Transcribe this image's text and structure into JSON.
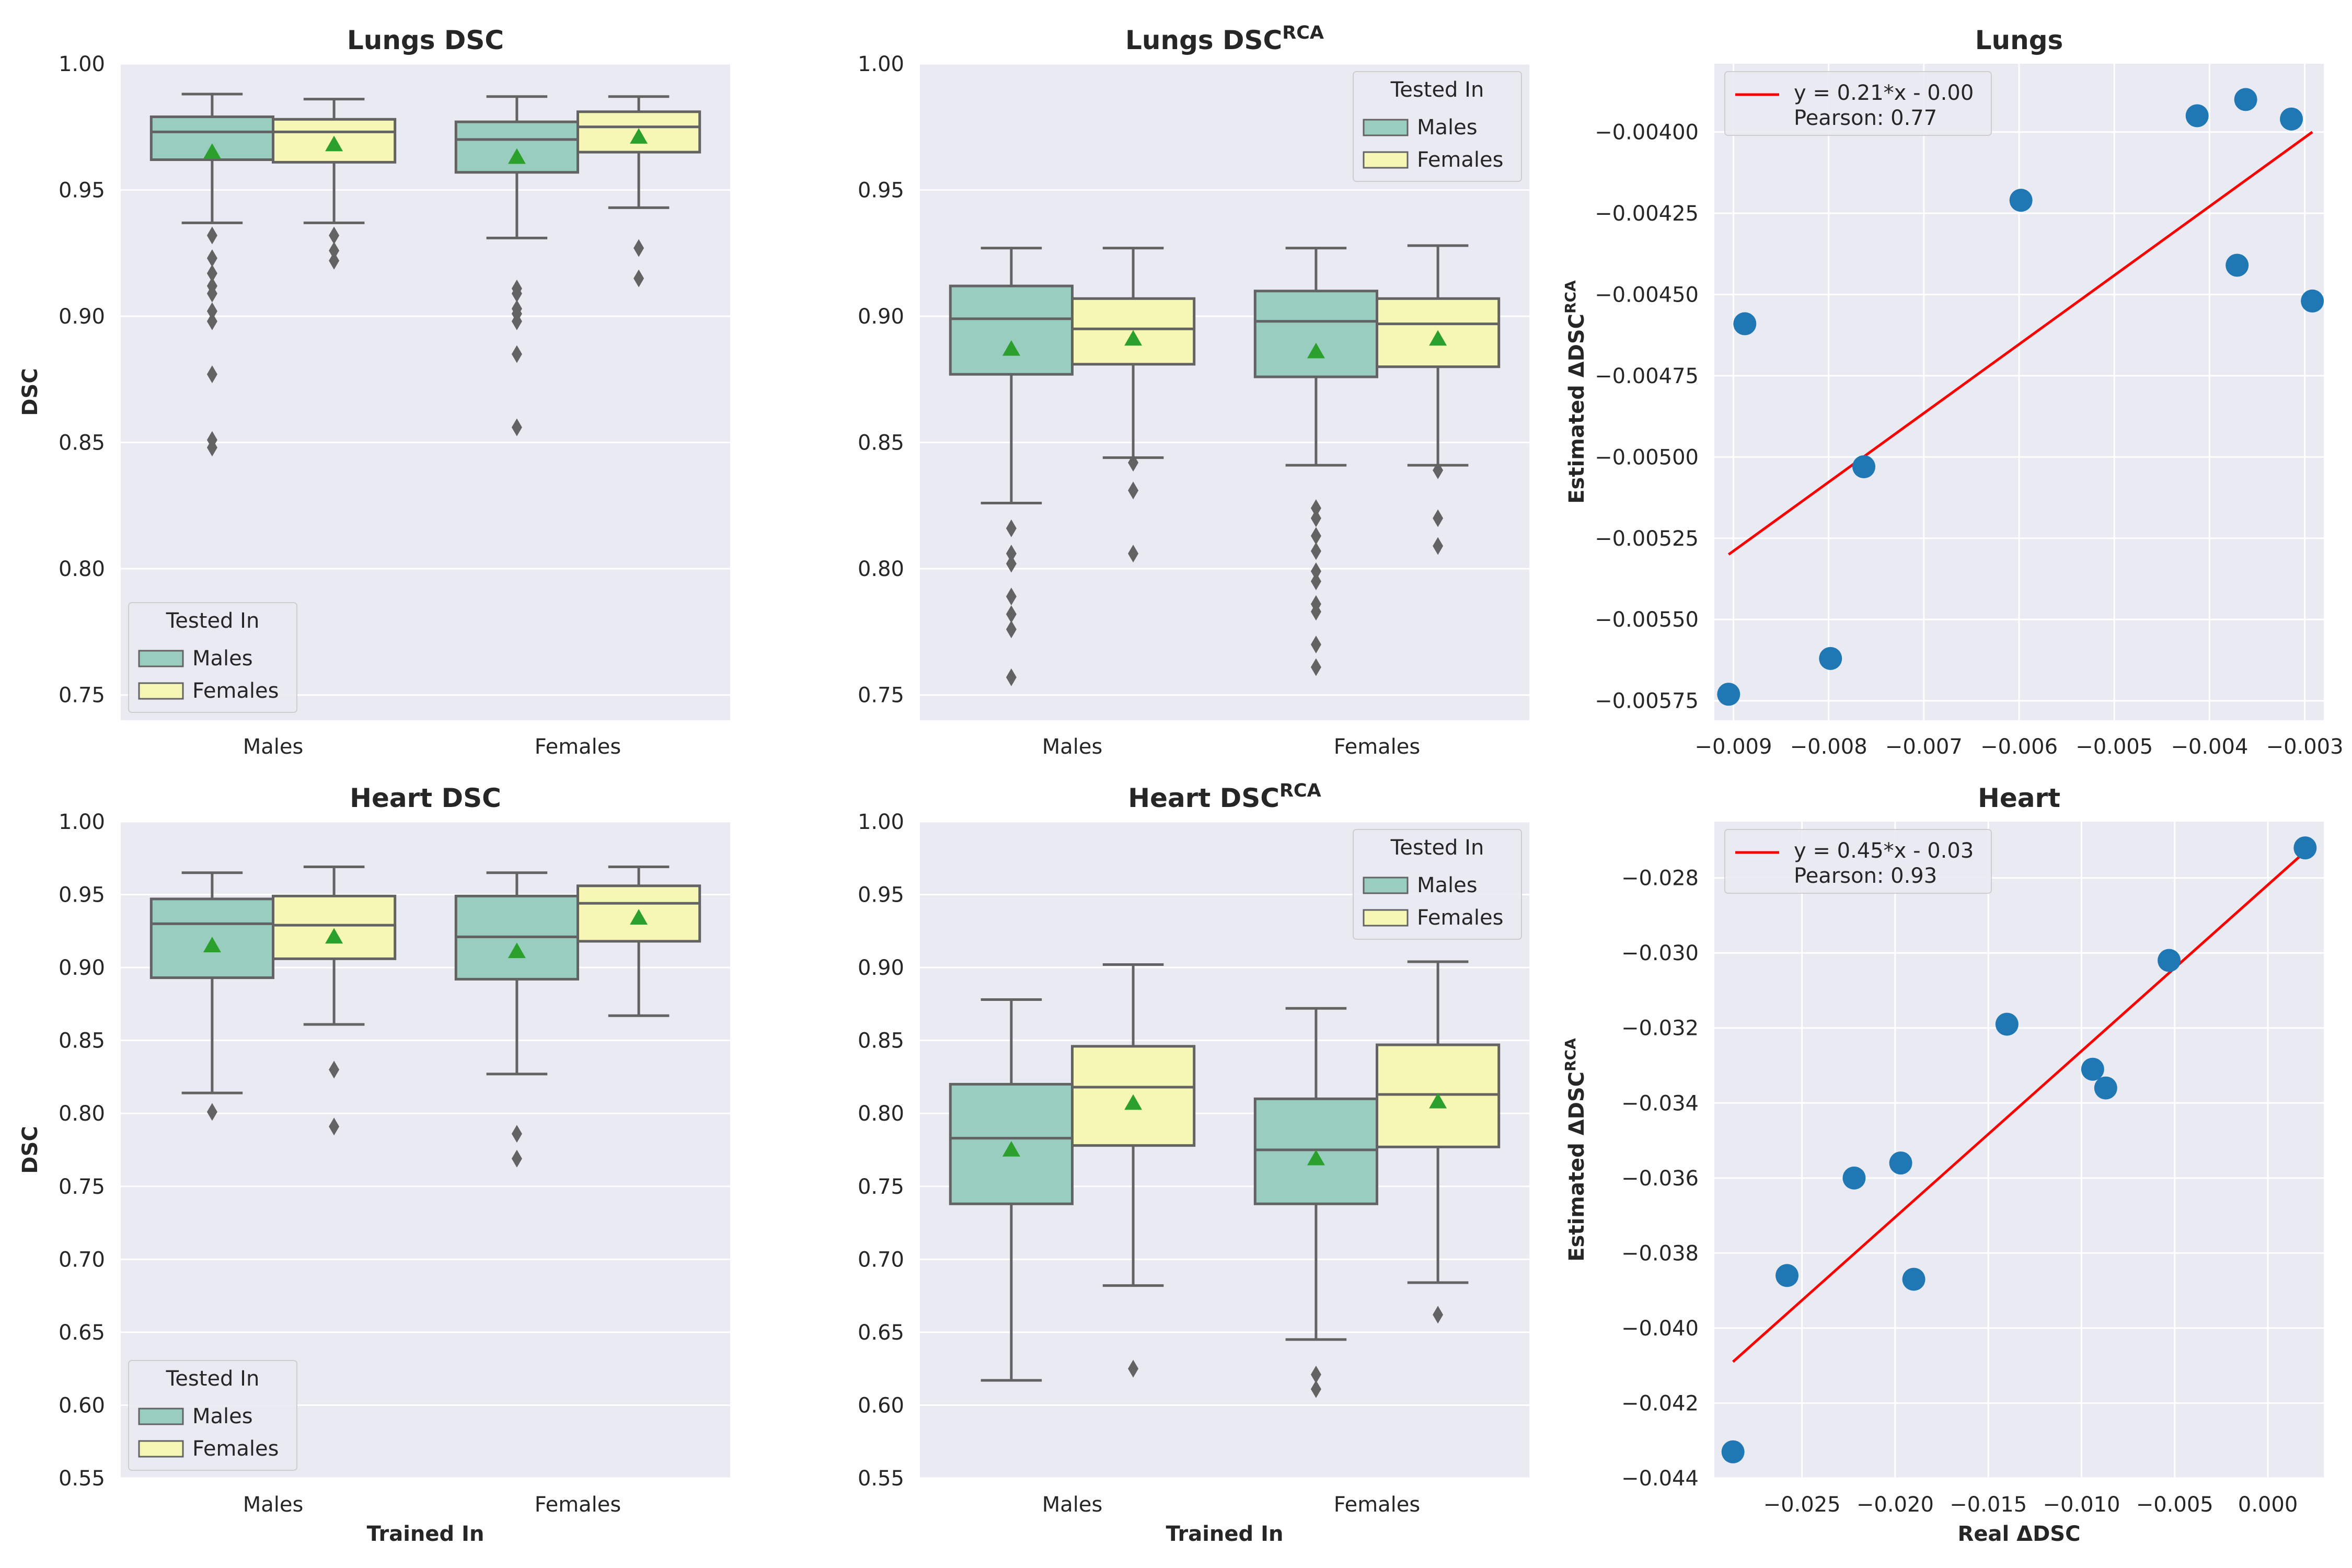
{
  "colors": {
    "males": "#99cdbf",
    "females": "#f7f7b5",
    "box_edge": "#636363",
    "mean_marker": "#2ca02c",
    "scatter_point": "#1f77b4",
    "fit_line": "#ff0000",
    "panel_bg": "#eaeaf2",
    "grid": "#ffffff"
  },
  "chart_data": [
    {
      "type": "box",
      "title": "Lungs DSC",
      "title_sup": "",
      "xlabel": "",
      "ylabel": "DSC",
      "ylim": [
        0.74,
        1.0
      ],
      "yticks": [
        0.75,
        0.8,
        0.85,
        0.9,
        0.95,
        1.0
      ],
      "ytick_labels": [
        "0.75",
        "0.80",
        "0.85",
        "0.90",
        "0.95",
        "1.00"
      ],
      "categories": [
        "Males",
        "Females"
      ],
      "legend": {
        "title": "Tested In",
        "entries": [
          "Males",
          "Females"
        ],
        "loc": "lower-left"
      },
      "groups": [
        {
          "trained_in": "Males",
          "tested_in": "Males",
          "whisker_low": 0.937,
          "q1": 0.962,
          "median": 0.973,
          "q3": 0.979,
          "whisker_high": 0.988,
          "mean": 0.965,
          "outliers": [
            0.932,
            0.923,
            0.917,
            0.912,
            0.909,
            0.902,
            0.898,
            0.877,
            0.851,
            0.848
          ]
        },
        {
          "trained_in": "Males",
          "tested_in": "Females",
          "whisker_low": 0.937,
          "q1": 0.961,
          "median": 0.973,
          "q3": 0.978,
          "whisker_high": 0.986,
          "mean": 0.968,
          "outliers": [
            0.932,
            0.926,
            0.922
          ]
        },
        {
          "trained_in": "Females",
          "tested_in": "Males",
          "whisker_low": 0.931,
          "q1": 0.957,
          "median": 0.97,
          "q3": 0.977,
          "whisker_high": 0.987,
          "mean": 0.963,
          "outliers": [
            0.911,
            0.909,
            0.903,
            0.901,
            0.898,
            0.885,
            0.856
          ]
        },
        {
          "trained_in": "Females",
          "tested_in": "Females",
          "whisker_low": 0.943,
          "q1": 0.965,
          "median": 0.975,
          "q3": 0.981,
          "whisker_high": 0.987,
          "mean": 0.971,
          "outliers": [
            0.927,
            0.915
          ]
        }
      ]
    },
    {
      "type": "box",
      "title": "Lungs DSC",
      "title_sup": "RCA",
      "xlabel": "",
      "ylabel": "",
      "ylim": [
        0.74,
        1.0
      ],
      "yticks": [
        0.75,
        0.8,
        0.85,
        0.9,
        0.95,
        1.0
      ],
      "ytick_labels": [
        "0.75",
        "0.80",
        "0.85",
        "0.90",
        "0.95",
        "1.00"
      ],
      "categories": [
        "Males",
        "Females"
      ],
      "legend": {
        "title": "Tested In",
        "entries": [
          "Males",
          "Females"
        ],
        "loc": "upper-right"
      },
      "groups": [
        {
          "trained_in": "Males",
          "tested_in": "Males",
          "whisker_low": 0.826,
          "q1": 0.877,
          "median": 0.899,
          "q3": 0.912,
          "whisker_high": 0.927,
          "mean": 0.887,
          "outliers": [
            0.816,
            0.806,
            0.802,
            0.789,
            0.782,
            0.776,
            0.757
          ]
        },
        {
          "trained_in": "Males",
          "tested_in": "Females",
          "whisker_low": 0.844,
          "q1": 0.881,
          "median": 0.895,
          "q3": 0.907,
          "whisker_high": 0.927,
          "mean": 0.891,
          "outliers": [
            0.842,
            0.831,
            0.806
          ]
        },
        {
          "trained_in": "Females",
          "tested_in": "Males",
          "whisker_low": 0.841,
          "q1": 0.876,
          "median": 0.898,
          "q3": 0.91,
          "whisker_high": 0.927,
          "mean": 0.886,
          "outliers": [
            0.824,
            0.82,
            0.813,
            0.807,
            0.799,
            0.795,
            0.786,
            0.783,
            0.77,
            0.761
          ]
        },
        {
          "trained_in": "Females",
          "tested_in": "Females",
          "whisker_low": 0.841,
          "q1": 0.88,
          "median": 0.897,
          "q3": 0.907,
          "whisker_high": 0.928,
          "mean": 0.891,
          "outliers": [
            0.839,
            0.82,
            0.809
          ]
        }
      ]
    },
    {
      "type": "scatter",
      "title": "Lungs",
      "xlabel": "",
      "ylabel": "Estimated ΔDSC",
      "ylabel_sup": "RCA",
      "xlim": [
        -0.0092,
        -0.0028
      ],
      "ylim": [
        -0.00581,
        -0.00379
      ],
      "xticks": [
        -0.009,
        -0.008,
        -0.007,
        -0.006,
        -0.005,
        -0.004,
        -0.003
      ],
      "xtick_labels": [
        "−0.009",
        "−0.008",
        "−0.007",
        "−0.006",
        "−0.005",
        "−0.004",
        "−0.003"
      ],
      "yticks": [
        -0.00575,
        -0.0055,
        -0.00525,
        -0.005,
        -0.00475,
        -0.0045,
        -0.00425,
        -0.004
      ],
      "ytick_labels": [
        "−0.00575",
        "−0.00550",
        "−0.00525",
        "−0.00500",
        "−0.00475",
        "−0.00450",
        "−0.00425",
        "−0.00400"
      ],
      "points": [
        {
          "x": -0.00905,
          "y": -0.00573
        },
        {
          "x": -0.00888,
          "y": -0.00459
        },
        {
          "x": -0.00798,
          "y": -0.00562
        },
        {
          "x": -0.00763,
          "y": -0.00503
        },
        {
          "x": -0.00598,
          "y": -0.00421
        },
        {
          "x": -0.00413,
          "y": -0.00395
        },
        {
          "x": -0.00371,
          "y": -0.00441
        },
        {
          "x": -0.00362,
          "y": -0.0039
        },
        {
          "x": -0.00314,
          "y": -0.00396
        },
        {
          "x": -0.00292,
          "y": -0.00452
        }
      ],
      "fit": {
        "x_start": -0.00905,
        "x_end": -0.00292,
        "y_start": -0.0053,
        "y_end": -0.004
      },
      "legend": {
        "line1": "y = 0.21*x - 0.00",
        "line2": "Pearson: 0.77",
        "loc": "upper-left"
      }
    },
    {
      "type": "box",
      "title": "Heart DSC",
      "title_sup": "",
      "xlabel": "Trained In",
      "ylabel": "DSC",
      "ylim": [
        0.55,
        1.0
      ],
      "yticks": [
        0.55,
        0.6,
        0.65,
        0.7,
        0.75,
        0.8,
        0.85,
        0.9,
        0.95,
        1.0
      ],
      "ytick_labels": [
        "0.55",
        "0.60",
        "0.65",
        "0.70",
        "0.75",
        "0.80",
        "0.85",
        "0.90",
        "0.95",
        "1.00"
      ],
      "categories": [
        "Males",
        "Females"
      ],
      "legend": {
        "title": "Tested In",
        "entries": [
          "Males",
          "Females"
        ],
        "loc": "lower-left"
      },
      "groups": [
        {
          "trained_in": "Males",
          "tested_in": "Males",
          "whisker_low": 0.814,
          "q1": 0.893,
          "median": 0.93,
          "q3": 0.947,
          "whisker_high": 0.965,
          "mean": 0.915,
          "outliers": [
            0.801
          ]
        },
        {
          "trained_in": "Males",
          "tested_in": "Females",
          "whisker_low": 0.861,
          "q1": 0.906,
          "median": 0.929,
          "q3": 0.949,
          "whisker_high": 0.969,
          "mean": 0.921,
          "outliers": [
            0.83,
            0.791
          ]
        },
        {
          "trained_in": "Females",
          "tested_in": "Males",
          "whisker_low": 0.827,
          "q1": 0.892,
          "median": 0.921,
          "q3": 0.949,
          "whisker_high": 0.965,
          "mean": 0.911,
          "outliers": [
            0.786,
            0.769
          ]
        },
        {
          "trained_in": "Females",
          "tested_in": "Females",
          "whisker_low": 0.867,
          "q1": 0.918,
          "median": 0.944,
          "q3": 0.956,
          "whisker_high": 0.969,
          "mean": 0.934,
          "outliers": []
        }
      ]
    },
    {
      "type": "box",
      "title": "Heart DSC",
      "title_sup": "RCA",
      "xlabel": "Trained In",
      "ylabel": "",
      "ylim": [
        0.55,
        1.0
      ],
      "yticks": [
        0.55,
        0.6,
        0.65,
        0.7,
        0.75,
        0.8,
        0.85,
        0.9,
        0.95,
        1.0
      ],
      "ytick_labels": [
        "0.55",
        "0.60",
        "0.65",
        "0.70",
        "0.75",
        "0.80",
        "0.85",
        "0.90",
        "0.95",
        "1.00"
      ],
      "categories": [
        "Males",
        "Females"
      ],
      "legend": {
        "title": "Tested In",
        "entries": [
          "Males",
          "Females"
        ],
        "loc": "upper-right"
      },
      "groups": [
        {
          "trained_in": "Males",
          "tested_in": "Males",
          "whisker_low": 0.617,
          "q1": 0.738,
          "median": 0.783,
          "q3": 0.82,
          "whisker_high": 0.878,
          "mean": 0.775,
          "outliers": []
        },
        {
          "trained_in": "Males",
          "tested_in": "Females",
          "whisker_low": 0.682,
          "q1": 0.778,
          "median": 0.818,
          "q3": 0.846,
          "whisker_high": 0.902,
          "mean": 0.807,
          "outliers": [
            0.625
          ]
        },
        {
          "trained_in": "Females",
          "tested_in": "Males",
          "whisker_low": 0.645,
          "q1": 0.738,
          "median": 0.775,
          "q3": 0.81,
          "whisker_high": 0.872,
          "mean": 0.769,
          "outliers": [
            0.621,
            0.611
          ]
        },
        {
          "trained_in": "Females",
          "tested_in": "Females",
          "whisker_low": 0.684,
          "q1": 0.777,
          "median": 0.813,
          "q3": 0.847,
          "whisker_high": 0.904,
          "mean": 0.808,
          "outliers": [
            0.662
          ]
        }
      ]
    },
    {
      "type": "scatter",
      "title": "Heart",
      "xlabel": "Real ΔDSC",
      "ylabel": "Estimated ΔDSC",
      "ylabel_sup": "RCA",
      "xlim": [
        -0.0297,
        0.003
      ],
      "ylim": [
        -0.044,
        -0.0265
      ],
      "xticks": [
        -0.025,
        -0.02,
        -0.015,
        -0.01,
        -0.005,
        0.0
      ],
      "xtick_labels": [
        "−0.025",
        "−0.020",
        "−0.015",
        "−0.010",
        "−0.005",
        "0.000"
      ],
      "yticks": [
        -0.044,
        -0.042,
        -0.04,
        -0.038,
        -0.036,
        -0.034,
        -0.032,
        -0.03,
        -0.028
      ],
      "ytick_labels": [
        "−0.044",
        "−0.042",
        "−0.040",
        "−0.038",
        "−0.036",
        "−0.034",
        "−0.032",
        "−0.030",
        "−0.028"
      ],
      "points": [
        {
          "x": -0.0287,
          "y": -0.0433
        },
        {
          "x": -0.0258,
          "y": -0.0386
        },
        {
          "x": -0.0222,
          "y": -0.036
        },
        {
          "x": -0.0197,
          "y": -0.0356
        },
        {
          "x": -0.019,
          "y": -0.0387
        },
        {
          "x": -0.014,
          "y": -0.0319
        },
        {
          "x": -0.0094,
          "y": -0.0331
        },
        {
          "x": -0.0087,
          "y": -0.0336
        },
        {
          "x": -0.0053,
          "y": -0.0302
        },
        {
          "x": 0.002,
          "y": -0.0272
        }
      ],
      "fit": {
        "x_start": -0.0287,
        "x_end": 0.002,
        "y_start": -0.0409,
        "y_end": -0.0273
      },
      "legend": {
        "line1": "y = 0.45*x - 0.03",
        "line2": "Pearson: 0.93",
        "loc": "upper-left"
      }
    }
  ]
}
